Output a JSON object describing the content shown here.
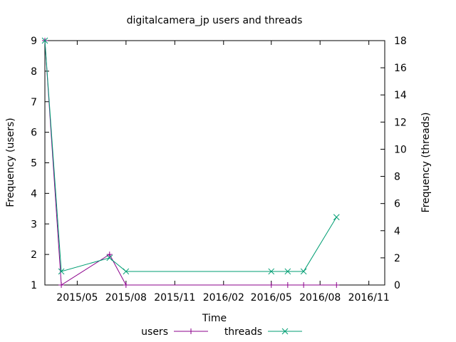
{
  "chart_data": {
    "type": "line",
    "title": "digitalcamera_jp users and threads",
    "xlabel": "Time",
    "ylabel_left": "Frequency (users)",
    "ylabel_right": "Frequency (threads)",
    "x_ticks": [
      "2015/05",
      "2015/08",
      "2015/11",
      "2016/02",
      "2016/05",
      "2016/08",
      "2016/11"
    ],
    "xlim": [
      "2015-03-01",
      "2016-12-01"
    ],
    "ylim_left": [
      1,
      9
    ],
    "yticks_left": [
      1,
      2,
      3,
      4,
      5,
      6,
      7,
      8,
      9
    ],
    "ylim_right": [
      0,
      18
    ],
    "yticks_right": [
      0,
      2,
      4,
      6,
      8,
      10,
      12,
      14,
      16,
      18
    ],
    "grid": false,
    "legend_placement": "bottom-center",
    "series": [
      {
        "name": "users",
        "axis": "left",
        "color": "#8b008b",
        "marker": "plus",
        "points": [
          [
            "2015-03-01",
            9
          ],
          [
            "2015-04-01",
            1
          ],
          [
            "2015-07-01",
            2
          ],
          [
            "2015-08-01",
            1
          ],
          [
            "2016-05-01",
            1
          ],
          [
            "2016-06-01",
            1
          ],
          [
            "2016-07-01",
            1
          ],
          [
            "2016-09-01",
            1
          ]
        ]
      },
      {
        "name": "threads",
        "axis": "right",
        "color": "#009e73",
        "marker": "cross",
        "points": [
          [
            "2015-03-01",
            18
          ],
          [
            "2015-04-01",
            1
          ],
          [
            "2015-07-01",
            2
          ],
          [
            "2015-08-01",
            1
          ],
          [
            "2016-05-01",
            1
          ],
          [
            "2016-06-01",
            1
          ],
          [
            "2016-07-01",
            1
          ],
          [
            "2016-09-01",
            5
          ]
        ]
      }
    ]
  }
}
